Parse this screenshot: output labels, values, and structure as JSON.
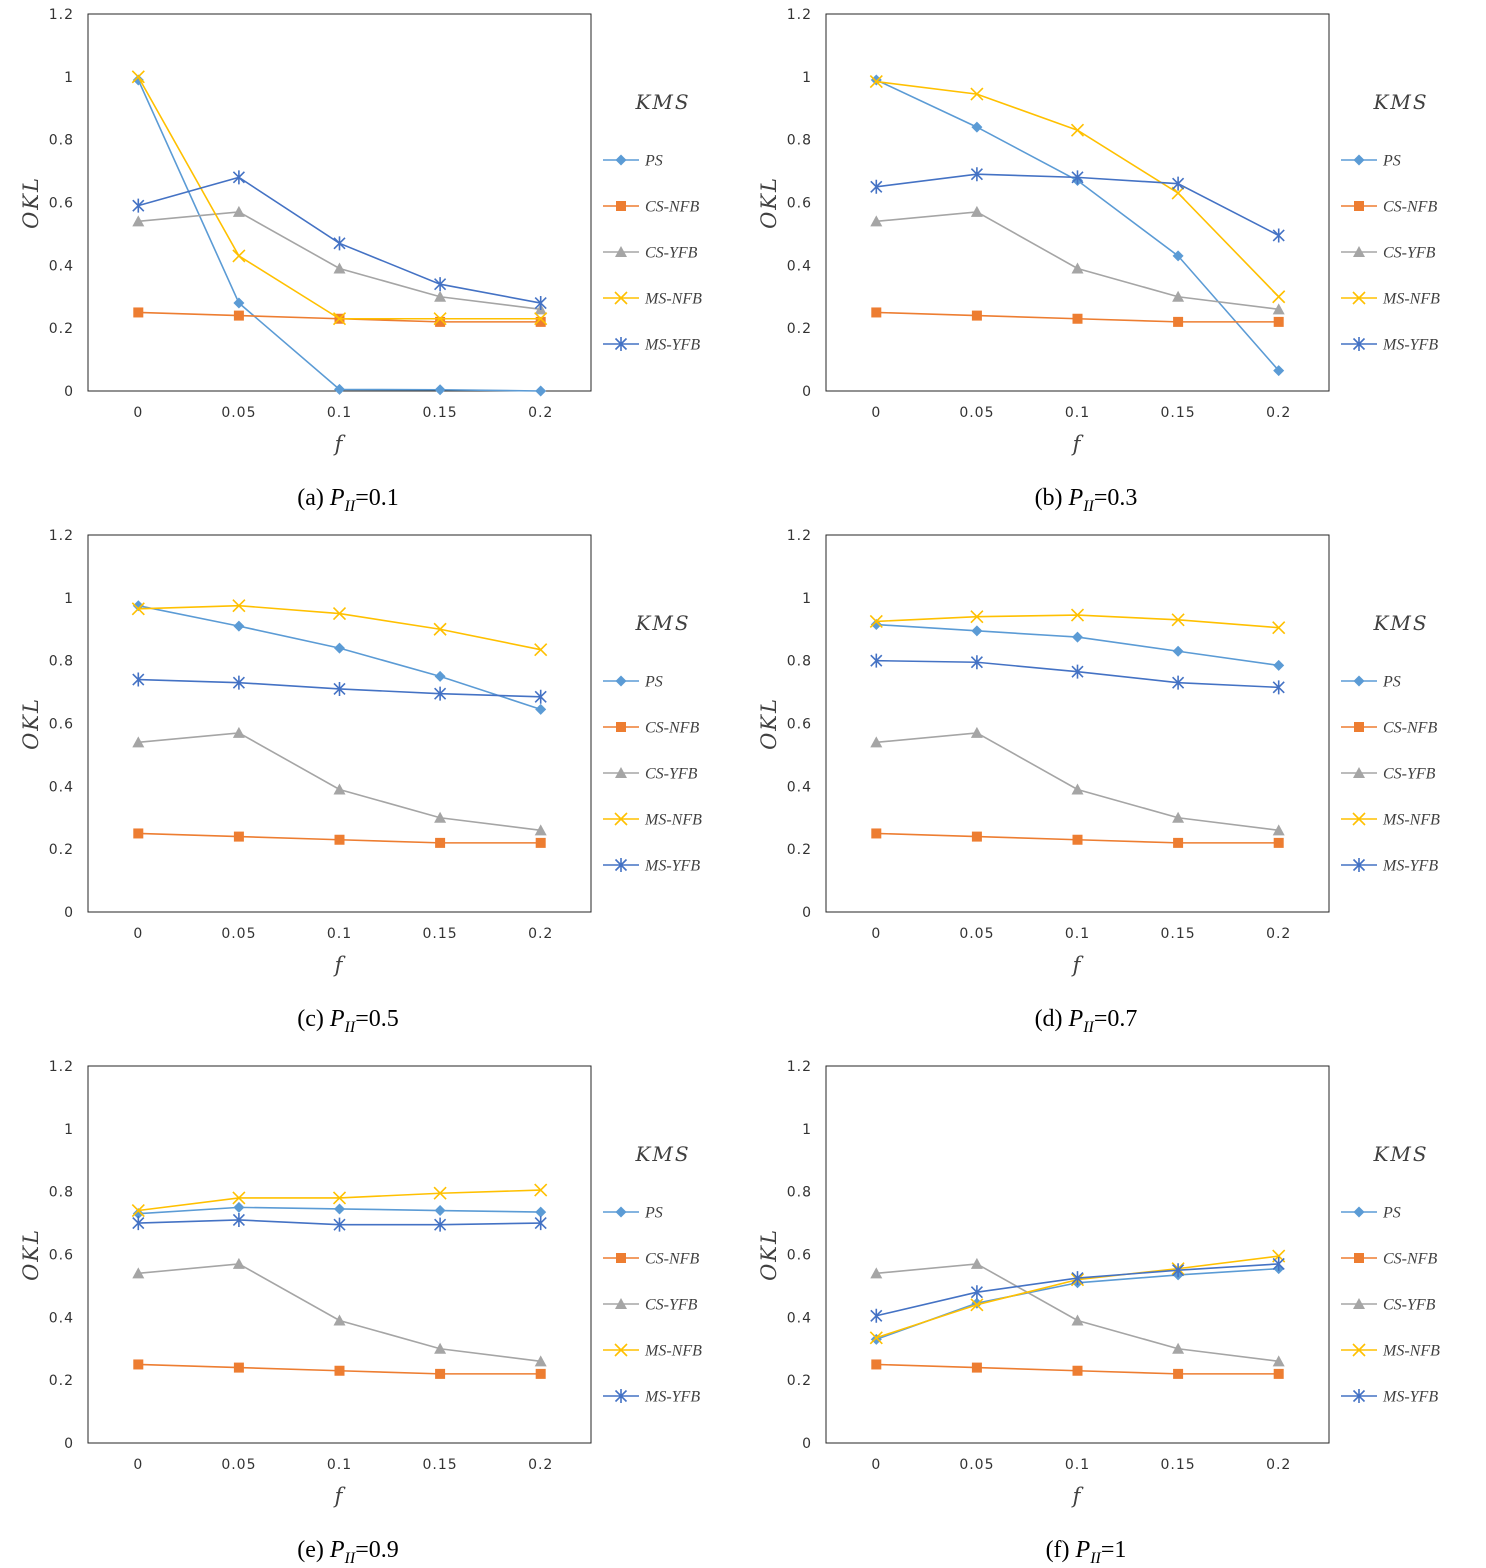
{
  "chart_data": [
    {
      "type": "line",
      "caption_prefix": "(a) ",
      "caption_var": "P",
      "caption_sub": "II",
      "caption_suffix": "=0.1",
      "xlabel": "f",
      "ylabel": "OKL",
      "legend_title": "KMS",
      "categories": [
        "0",
        "0.05",
        "0.1",
        "0.15",
        "0.2"
      ],
      "ylim": [
        0,
        1.2
      ],
      "yticks": [
        "0",
        "0.2",
        "0.4",
        "0.6",
        "0.8",
        "1",
        "1.2"
      ],
      "grid": false,
      "legend_position": "right",
      "series": [
        {
          "name": "PS",
          "color": "#5b9bd5",
          "marker": "diamond",
          "values": [
            0.99,
            0.28,
            0.005,
            0.004,
            0.0
          ]
        },
        {
          "name": "CS-NFB",
          "color": "#ed7d31",
          "marker": "square",
          "values": [
            0.25,
            0.24,
            0.23,
            0.22,
            0.22
          ]
        },
        {
          "name": "CS-YFB",
          "color": "#a5a5a5",
          "marker": "triangle",
          "values": [
            0.54,
            0.57,
            0.39,
            0.3,
            0.26
          ]
        },
        {
          "name": "MS-NFB",
          "color": "#ffc000",
          "marker": "x",
          "values": [
            1.0,
            0.43,
            0.23,
            0.23,
            0.23
          ]
        },
        {
          "name": "MS-YFB",
          "color": "#4472c4",
          "marker": "star",
          "values": [
            0.59,
            0.68,
            0.47,
            0.34,
            0.28
          ]
        }
      ]
    },
    {
      "type": "line",
      "caption_prefix": "(b) ",
      "caption_var": "P",
      "caption_sub": "II",
      "caption_suffix": "=0.3",
      "xlabel": "f",
      "ylabel": "OKL",
      "legend_title": "KMS",
      "categories": [
        "0",
        "0.05",
        "0.1",
        "0.15",
        "0.2"
      ],
      "ylim": [
        0,
        1.2
      ],
      "yticks": [
        "0",
        "0.2",
        "0.4",
        "0.6",
        "0.8",
        "1",
        "1.2"
      ],
      "grid": false,
      "legend_position": "right",
      "series": [
        {
          "name": "PS",
          "color": "#5b9bd5",
          "marker": "diamond",
          "values": [
            0.99,
            0.84,
            0.67,
            0.43,
            0.065
          ]
        },
        {
          "name": "CS-NFB",
          "color": "#ed7d31",
          "marker": "square",
          "values": [
            0.25,
            0.24,
            0.23,
            0.22,
            0.22
          ]
        },
        {
          "name": "CS-YFB",
          "color": "#a5a5a5",
          "marker": "triangle",
          "values": [
            0.54,
            0.57,
            0.39,
            0.3,
            0.26
          ]
        },
        {
          "name": "MS-NFB",
          "color": "#ffc000",
          "marker": "x",
          "values": [
            0.985,
            0.945,
            0.83,
            0.63,
            0.3
          ]
        },
        {
          "name": "MS-YFB",
          "color": "#4472c4",
          "marker": "star",
          "values": [
            0.65,
            0.69,
            0.68,
            0.66,
            0.495
          ]
        }
      ]
    },
    {
      "type": "line",
      "caption_prefix": "(c) ",
      "caption_var": "P",
      "caption_sub": "II",
      "caption_suffix": "=0.5",
      "xlabel": "f",
      "ylabel": "OKL",
      "legend_title": "KMS",
      "categories": [
        "0",
        "0.05",
        "0.1",
        "0.15",
        "0.2"
      ],
      "ylim": [
        0,
        1.2
      ],
      "yticks": [
        "0",
        "0.2",
        "0.4",
        "0.6",
        "0.8",
        "1",
        "1.2"
      ],
      "grid": false,
      "legend_position": "right",
      "series": [
        {
          "name": "PS",
          "color": "#5b9bd5",
          "marker": "diamond",
          "values": [
            0.975,
            0.91,
            0.84,
            0.75,
            0.645
          ]
        },
        {
          "name": "CS-NFB",
          "color": "#ed7d31",
          "marker": "square",
          "values": [
            0.25,
            0.24,
            0.23,
            0.22,
            0.22
          ]
        },
        {
          "name": "CS-YFB",
          "color": "#a5a5a5",
          "marker": "triangle",
          "values": [
            0.54,
            0.57,
            0.39,
            0.3,
            0.26
          ]
        },
        {
          "name": "MS-NFB",
          "color": "#ffc000",
          "marker": "x",
          "values": [
            0.965,
            0.975,
            0.95,
            0.9,
            0.835
          ]
        },
        {
          "name": "MS-YFB",
          "color": "#4472c4",
          "marker": "star",
          "values": [
            0.74,
            0.73,
            0.71,
            0.695,
            0.685
          ]
        }
      ]
    },
    {
      "type": "line",
      "caption_prefix": "(d) ",
      "caption_var": "P",
      "caption_sub": "II",
      "caption_suffix": "=0.7",
      "xlabel": "f",
      "ylabel": "OKL",
      "legend_title": "KMS",
      "categories": [
        "0",
        "0.05",
        "0.1",
        "0.15",
        "0.2"
      ],
      "ylim": [
        0,
        1.2
      ],
      "yticks": [
        "0",
        "0.2",
        "0.4",
        "0.6",
        "0.8",
        "1",
        "1.2"
      ],
      "grid": false,
      "legend_position": "right",
      "series": [
        {
          "name": "PS",
          "color": "#5b9bd5",
          "marker": "diamond",
          "values": [
            0.915,
            0.895,
            0.875,
            0.83,
            0.785
          ]
        },
        {
          "name": "CS-NFB",
          "color": "#ed7d31",
          "marker": "square",
          "values": [
            0.25,
            0.24,
            0.23,
            0.22,
            0.22
          ]
        },
        {
          "name": "CS-YFB",
          "color": "#a5a5a5",
          "marker": "triangle",
          "values": [
            0.54,
            0.57,
            0.39,
            0.3,
            0.26
          ]
        },
        {
          "name": "MS-NFB",
          "color": "#ffc000",
          "marker": "x",
          "values": [
            0.925,
            0.94,
            0.945,
            0.93,
            0.905
          ]
        },
        {
          "name": "MS-YFB",
          "color": "#4472c4",
          "marker": "star",
          "values": [
            0.8,
            0.795,
            0.765,
            0.73,
            0.715
          ]
        }
      ]
    },
    {
      "type": "line",
      "caption_prefix": "(e) ",
      "caption_var": "P",
      "caption_sub": "II",
      "caption_suffix": "=0.9",
      "xlabel": "f",
      "ylabel": "OKL",
      "legend_title": "KMS",
      "categories": [
        "0",
        "0.05",
        "0.1",
        "0.15",
        "0.2"
      ],
      "ylim": [
        0,
        1.2
      ],
      "yticks": [
        "0",
        "0.2",
        "0.4",
        "0.6",
        "0.8",
        "1",
        "1.2"
      ],
      "grid": false,
      "legend_position": "right",
      "series": [
        {
          "name": "PS",
          "color": "#5b9bd5",
          "marker": "diamond",
          "values": [
            0.73,
            0.75,
            0.745,
            0.74,
            0.735
          ]
        },
        {
          "name": "CS-NFB",
          "color": "#ed7d31",
          "marker": "square",
          "values": [
            0.25,
            0.24,
            0.23,
            0.22,
            0.22
          ]
        },
        {
          "name": "CS-YFB",
          "color": "#a5a5a5",
          "marker": "triangle",
          "values": [
            0.54,
            0.57,
            0.39,
            0.3,
            0.26
          ]
        },
        {
          "name": "MS-NFB",
          "color": "#ffc000",
          "marker": "x",
          "values": [
            0.74,
            0.78,
            0.78,
            0.795,
            0.805
          ]
        },
        {
          "name": "MS-YFB",
          "color": "#4472c4",
          "marker": "star",
          "values": [
            0.7,
            0.71,
            0.695,
            0.695,
            0.7
          ]
        }
      ]
    },
    {
      "type": "line",
      "caption_prefix": "(f) ",
      "caption_var": "P",
      "caption_sub": "II",
      "caption_suffix": "=1",
      "xlabel": "f",
      "ylabel": "OKL",
      "legend_title": "KMS",
      "categories": [
        "0",
        "0.05",
        "0.1",
        "0.15",
        "0.2"
      ],
      "ylim": [
        0,
        1.2
      ],
      "yticks": [
        "0",
        "0.2",
        "0.4",
        "0.6",
        "0.8",
        "1",
        "1.2"
      ],
      "grid": false,
      "legend_position": "right",
      "series": [
        {
          "name": "PS",
          "color": "#5b9bd5",
          "marker": "diamond",
          "values": [
            0.33,
            0.445,
            0.51,
            0.535,
            0.555
          ]
        },
        {
          "name": "CS-NFB",
          "color": "#ed7d31",
          "marker": "square",
          "values": [
            0.25,
            0.24,
            0.23,
            0.22,
            0.22
          ]
        },
        {
          "name": "CS-YFB",
          "color": "#a5a5a5",
          "marker": "triangle",
          "values": [
            0.54,
            0.57,
            0.39,
            0.3,
            0.26
          ]
        },
        {
          "name": "MS-NFB",
          "color": "#ffc000",
          "marker": "x",
          "values": [
            0.335,
            0.44,
            0.52,
            0.555,
            0.595
          ]
        },
        {
          "name": "MS-YFB",
          "color": "#4472c4",
          "marker": "star",
          "values": [
            0.405,
            0.48,
            0.525,
            0.55,
            0.57
          ]
        }
      ]
    }
  ]
}
